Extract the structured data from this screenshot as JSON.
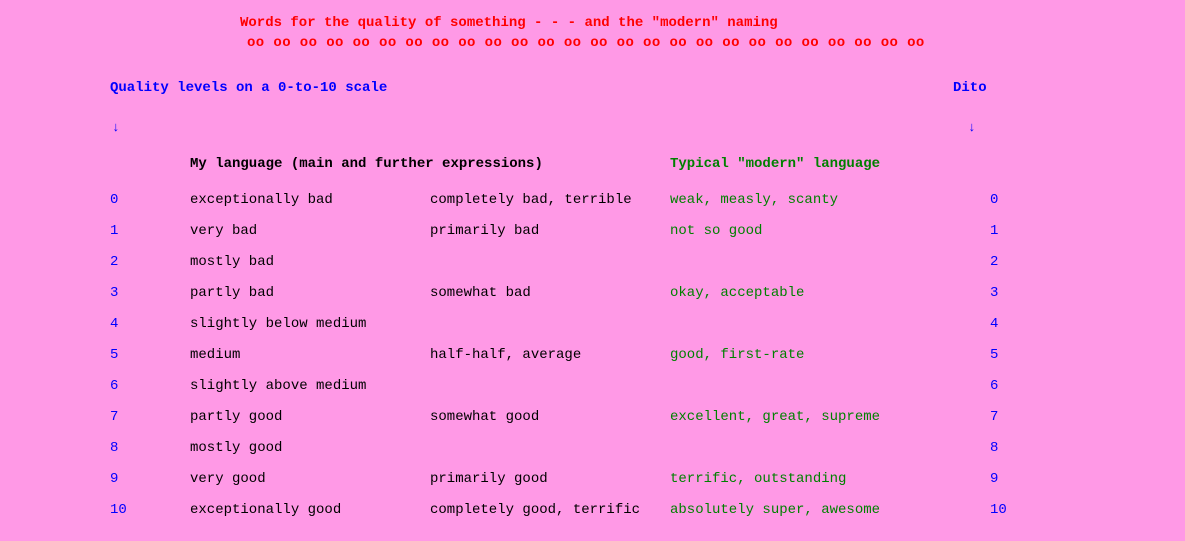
{
  "colors": {
    "background": "#ff99e6",
    "title": "#ff0000",
    "level": "#0000ff",
    "main_text": "#000000",
    "modern_text": "#008000"
  },
  "typography": {
    "font_family": "Courier New, monospace",
    "base_size_pt": 11,
    "title_bold": true,
    "headers_bold": true
  },
  "title": "Words for the quality of something - - - and the \"modern\" naming",
  "ornament": "oo oo oo oo oo oo oo oo oo oo oo oo oo oo oo oo oo oo oo oo oo oo oo oo oo oo",
  "subheading_left": "Quality levels on a 0-to-10 scale",
  "subheading_right": "Dito",
  "arrow": "↓",
  "col_header_main": "My language (main and further expressions)",
  "col_header_modern": "Typical \"modern\" language",
  "rows": [
    {
      "level": "0",
      "main": "exceptionally bad",
      "further": "completely bad, terrible",
      "modern": "weak, measly, scanty",
      "level_r": "0"
    },
    {
      "level": "1",
      "main": "very bad",
      "further": "primarily bad",
      "modern": "not so good",
      "level_r": "1"
    },
    {
      "level": "2",
      "main": "mostly bad",
      "further": "",
      "modern": "",
      "level_r": "2"
    },
    {
      "level": "3",
      "main": "partly bad",
      "further": "somewhat bad",
      "modern": "okay, acceptable",
      "level_r": "3"
    },
    {
      "level": "4",
      "main": "slightly below medium",
      "further": "",
      "modern": "",
      "level_r": "4"
    },
    {
      "level": "5",
      "main": "medium",
      "further": "half-half, average",
      "modern": "good, first-rate",
      "level_r": "5"
    },
    {
      "level": "6",
      "main": "slightly above medium",
      "further": "",
      "modern": "",
      "level_r": "6"
    },
    {
      "level": "7",
      "main": "partly good",
      "further": "somewhat good",
      "modern": "excellent, great, supreme",
      "level_r": "7"
    },
    {
      "level": "8",
      "main": "mostly good",
      "further": "",
      "modern": "",
      "level_r": "8"
    },
    {
      "level": "9",
      "main": "very good",
      "further": "primarily good",
      "modern": "terrific, outstanding",
      "level_r": "9"
    },
    {
      "level": "10",
      "main": "exceptionally good",
      "further": "completely good, terrific",
      "modern": "absolutely super, awesome",
      "level_r": "10"
    }
  ]
}
